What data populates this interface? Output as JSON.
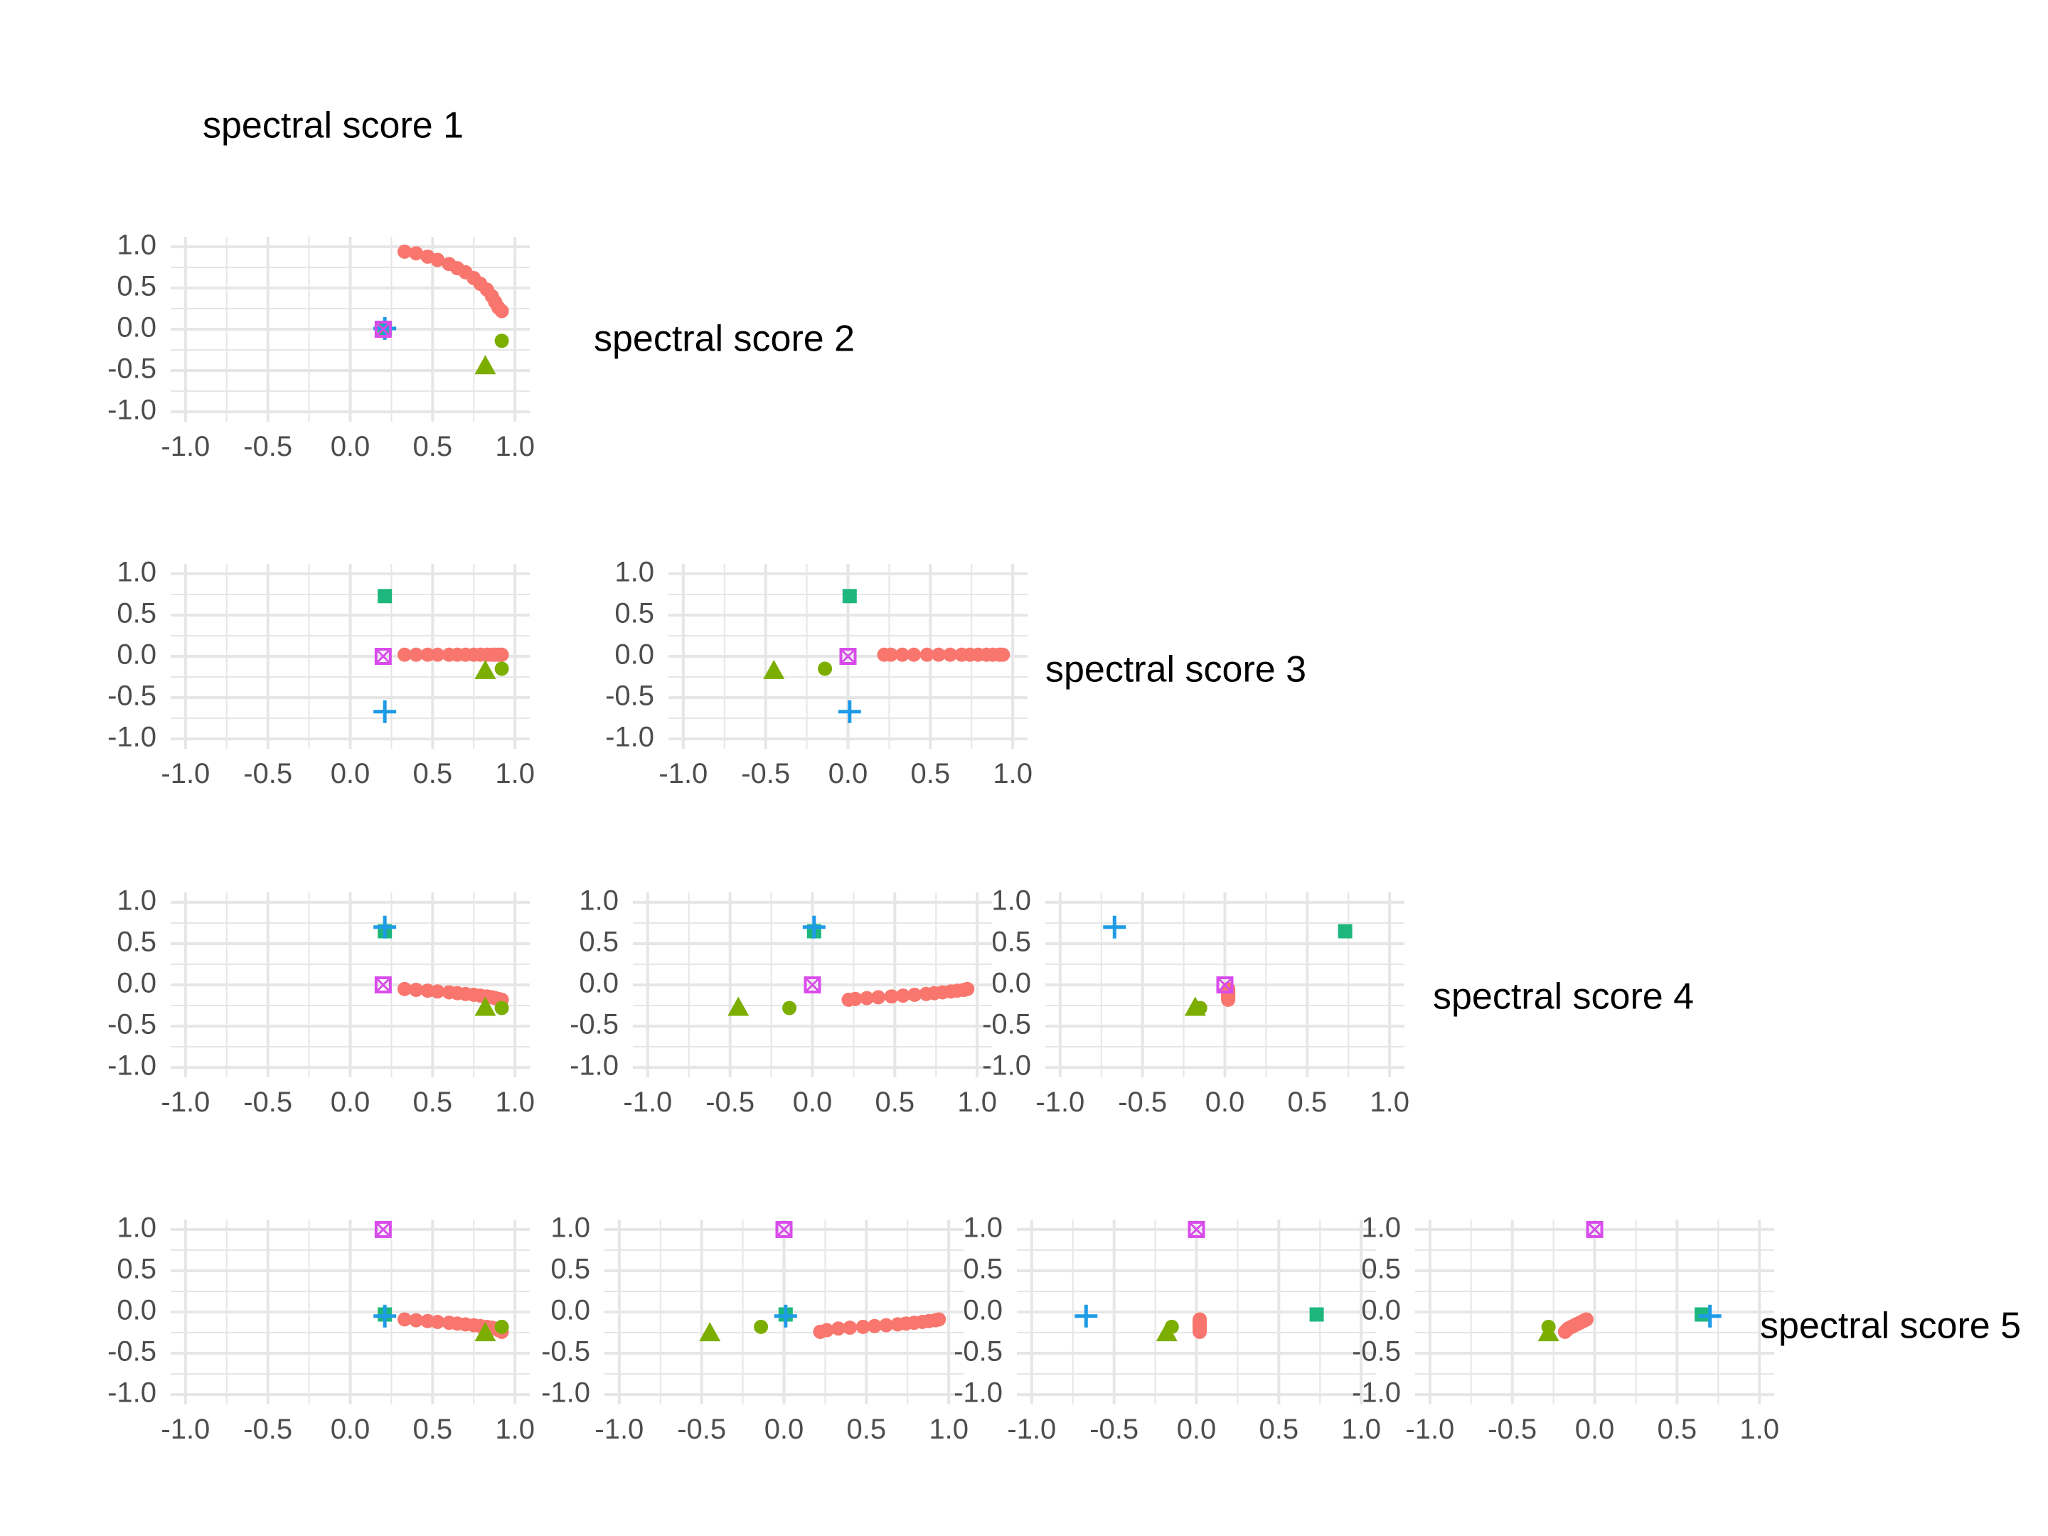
{
  "chart_data": {
    "type": "scatter",
    "layout": "scatterplot-matrix-lower-triangle",
    "variables": [
      "spectral score 1",
      "spectral score 2",
      "spectral score 3",
      "spectral score 4",
      "spectral score 5"
    ],
    "axis_range": [
      -1.0,
      1.0
    ],
    "tick_labels": [
      "-1.0",
      "-0.5",
      "0.0",
      "0.5",
      "1.0"
    ],
    "tick_values": [
      -1.0,
      -0.5,
      0.0,
      0.5,
      1.0
    ],
    "grid": true,
    "colors": {
      "red": "#F8766D",
      "olive": "#7CAE00",
      "green": "#1DB77E",
      "blue": "#1E9BE6",
      "magenta": "#D84CEB",
      "grid": "#E6E6E6",
      "tick_text": "#4D4D4D"
    },
    "points": {
      "red_curve": [
        [
          0.33,
          0.94,
          0.02,
          -0.05,
          -0.09
        ],
        [
          0.4,
          0.92,
          0.02,
          -0.06,
          -0.1
        ],
        [
          0.47,
          0.88,
          0.02,
          -0.07,
          -0.11
        ],
        [
          0.53,
          0.84,
          0.02,
          -0.08,
          -0.12
        ],
        [
          0.6,
          0.79,
          0.02,
          -0.09,
          -0.13
        ],
        [
          0.65,
          0.74,
          0.02,
          -0.1,
          -0.14
        ],
        [
          0.7,
          0.69,
          0.02,
          -0.11,
          -0.15
        ],
        [
          0.75,
          0.62,
          0.02,
          -0.12,
          -0.16
        ],
        [
          0.79,
          0.55,
          0.02,
          -0.13,
          -0.17
        ],
        [
          0.83,
          0.48,
          0.02,
          -0.14,
          -0.18
        ],
        [
          0.86,
          0.4,
          0.02,
          -0.15,
          -0.19
        ],
        [
          0.88,
          0.33,
          0.02,
          -0.16,
          -0.2
        ],
        [
          0.9,
          0.26,
          0.02,
          -0.17,
          -0.22
        ],
        [
          0.92,
          0.22,
          0.02,
          -0.18,
          -0.24
        ]
      ],
      "olive_circle": [
        [
          0.92,
          -0.14,
          -0.15,
          -0.28,
          -0.18
        ]
      ],
      "olive_triangle": [
        [
          0.82,
          -0.45,
          -0.18,
          -0.28,
          -0.26
        ]
      ],
      "green_square": [
        [
          0.21,
          0.01,
          0.73,
          0.65,
          -0.03
        ]
      ],
      "blue_cross": [
        [
          0.21,
          0.01,
          -0.67,
          0.7,
          -0.05
        ]
      ],
      "magenta_xbox": [
        [
          0.2,
          0.0,
          0.0,
          0.0,
          1.0
        ]
      ]
    }
  }
}
